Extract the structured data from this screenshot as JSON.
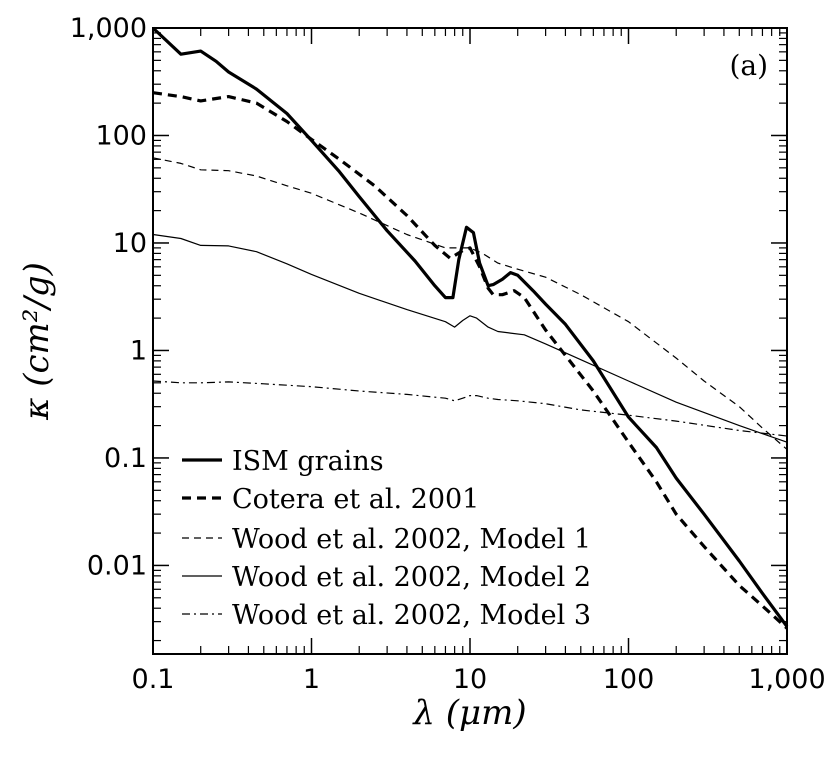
{
  "chart_data": {
    "type": "line",
    "panel_label": "(a)",
    "xlabel": "λ (μm)",
    "ylabel": "κ (cm²/g)",
    "xscale": "log",
    "yscale": "log",
    "xlim": [
      0.1,
      1000
    ],
    "ylim": [
      0.0015,
      1000
    ],
    "x_ticks": [
      {
        "value": 0.1,
        "label": "0.1"
      },
      {
        "value": 1,
        "label": "1"
      },
      {
        "value": 10,
        "label": "10"
      },
      {
        "value": 100,
        "label": "100"
      },
      {
        "value": 1000,
        "label": "1,000"
      }
    ],
    "y_ticks": [
      {
        "value": 0.01,
        "label": "0.01"
      },
      {
        "value": 0.1,
        "label": "0.1"
      },
      {
        "value": 1,
        "label": "1"
      },
      {
        "value": 10,
        "label": "10"
      },
      {
        "value": 100,
        "label": "100"
      },
      {
        "value": 1000,
        "label": "1,000"
      }
    ],
    "legend_position": "bottom-left",
    "series": [
      {
        "name": "ISM grains",
        "style": "thick-solid",
        "x": [
          0.1,
          0.15,
          0.2,
          0.25,
          0.3,
          0.45,
          0.7,
          1,
          1.5,
          2,
          3,
          4.5,
          6,
          7,
          7.8,
          8.5,
          9.5,
          10.5,
          11.5,
          13,
          14,
          16,
          18,
          20,
          25,
          30,
          40,
          60,
          100,
          150,
          200,
          300,
          500,
          700,
          1000
        ],
        "values": [
          1000,
          570,
          610,
          490,
          390,
          270,
          160,
          90,
          46,
          27,
          13,
          6.8,
          4.0,
          3.1,
          3.1,
          7.0,
          14.0,
          12.5,
          6.5,
          4.0,
          4.1,
          4.6,
          5.3,
          5.0,
          3.6,
          2.7,
          1.75,
          0.8,
          0.24,
          0.125,
          0.065,
          0.03,
          0.011,
          0.0055,
          0.0027
        ]
      },
      {
        "name": "Cotera et al. 2001",
        "style": "thick-dashed",
        "x": [
          0.1,
          0.15,
          0.2,
          0.3,
          0.45,
          0.7,
          1,
          1.5,
          2.5,
          4,
          6,
          7.5,
          9,
          10,
          11.5,
          13,
          14,
          16,
          19,
          22,
          30,
          40,
          60,
          100,
          150,
          200,
          300,
          500,
          700,
          1000
        ],
        "values": [
          250,
          230,
          210,
          230,
          200,
          135,
          92,
          60,
          34,
          18,
          9.5,
          7.2,
          8.5,
          9.0,
          6.0,
          3.8,
          3.3,
          3.3,
          3.6,
          3.1,
          1.55,
          0.9,
          0.42,
          0.14,
          0.06,
          0.03,
          0.015,
          0.0065,
          0.0042,
          0.0026
        ]
      },
      {
        "name": "Wood et al. 2002, Model 1",
        "style": "thin-dashed",
        "x": [
          0.1,
          0.15,
          0.2,
          0.3,
          0.45,
          0.7,
          1,
          2,
          4,
          7,
          10,
          12,
          15,
          20,
          30,
          50,
          100,
          200,
          300,
          500,
          700,
          1000
        ],
        "values": [
          62,
          55,
          48,
          47,
          42,
          34,
          29,
          19,
          12,
          9.0,
          9.0,
          8.0,
          6.5,
          5.7,
          4.8,
          3.3,
          1.85,
          0.85,
          0.52,
          0.3,
          0.19,
          0.12
        ]
      },
      {
        "name": "Wood et al. 2002, Model 2",
        "style": "thin-solid",
        "x": [
          0.1,
          0.15,
          0.2,
          0.3,
          0.45,
          0.7,
          1,
          2,
          4,
          7,
          8,
          9,
          10,
          11,
          13,
          15,
          18,
          22,
          30,
          50,
          100,
          200,
          500,
          1000
        ],
        "values": [
          12,
          11,
          9.5,
          9.4,
          8.3,
          6.4,
          5.1,
          3.4,
          2.4,
          1.85,
          1.65,
          1.9,
          2.1,
          2.0,
          1.65,
          1.5,
          1.45,
          1.4,
          1.15,
          0.82,
          0.52,
          0.33,
          0.2,
          0.14
        ]
      },
      {
        "name": "Wood et al. 2002, Model 3",
        "style": "dash-dot",
        "x": [
          0.1,
          0.15,
          0.2,
          0.3,
          0.5,
          1,
          2,
          4,
          7,
          8,
          9,
          10,
          11,
          13,
          15,
          20,
          30,
          50,
          100,
          200,
          500,
          1000
        ],
        "values": [
          0.52,
          0.5,
          0.5,
          0.51,
          0.49,
          0.46,
          0.42,
          0.39,
          0.36,
          0.34,
          0.36,
          0.38,
          0.38,
          0.36,
          0.35,
          0.34,
          0.32,
          0.28,
          0.25,
          0.22,
          0.18,
          0.16
        ]
      }
    ]
  }
}
